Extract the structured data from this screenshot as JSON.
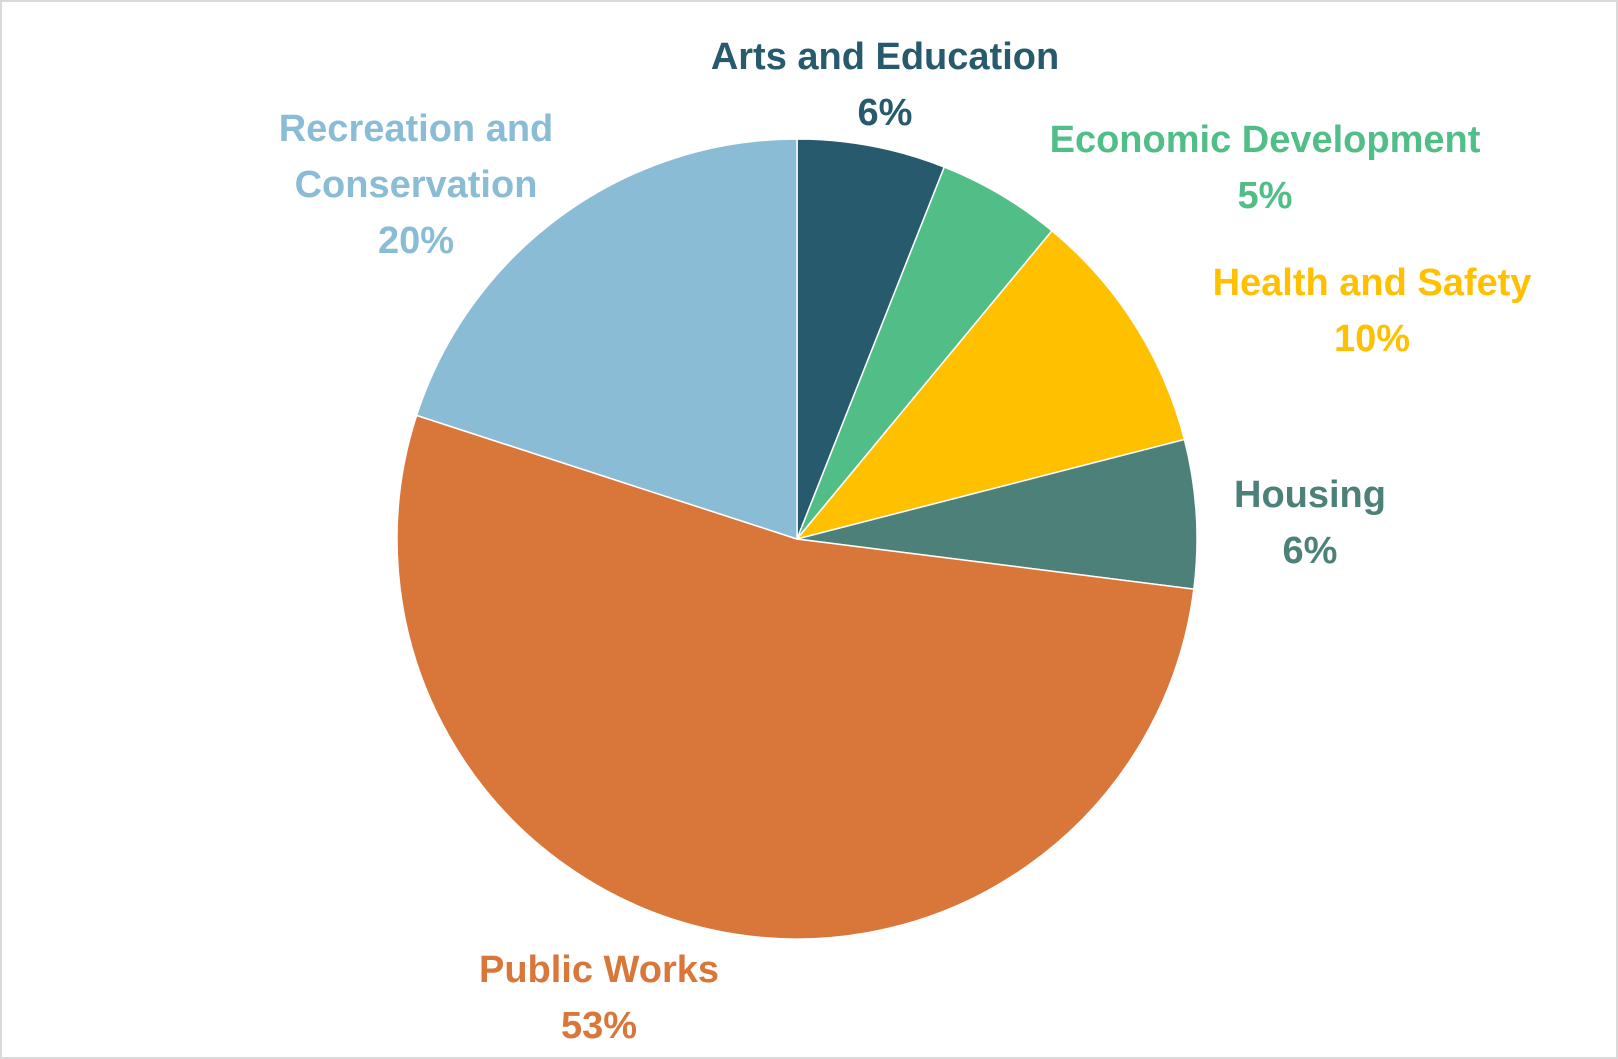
{
  "chart_data": {
    "type": "pie",
    "start_angle_deg": 0,
    "direction": "clockwise",
    "slices": [
      {
        "label": "Arts and Education",
        "value": 6,
        "value_label": "6%",
        "color": "#285a6e"
      },
      {
        "label": "Economic Development",
        "value": 5,
        "value_label": "5%",
        "color": "#51be87"
      },
      {
        "label": "Health and Safety",
        "value": 10,
        "value_label": "10%",
        "color": "#ffc000"
      },
      {
        "label": "Housing",
        "value": 6,
        "value_label": "6%",
        "color": "#4d8078"
      },
      {
        "label": "Public Works",
        "value": 53,
        "value_label": "53%",
        "color": "#d9763a"
      },
      {
        "label": "Recreation and Conservation",
        "value": 20,
        "value_label": "20%",
        "color": "#8bbcd6"
      }
    ]
  }
}
